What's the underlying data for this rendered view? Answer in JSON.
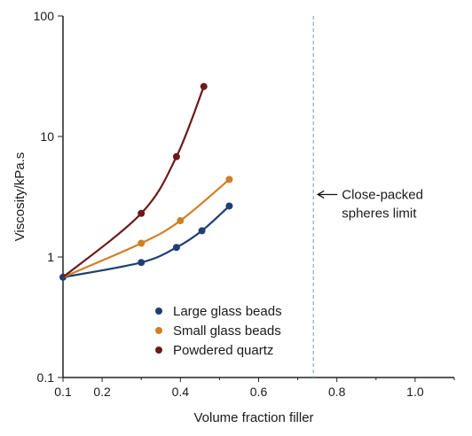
{
  "chart_data": {
    "type": "line",
    "xlabel": "Volume fraction filler",
    "ylabel": "Viscosity/kPa.s",
    "xscale": "linear",
    "yscale": "log",
    "xlim": [
      0.1,
      1.1
    ],
    "ylim": [
      0.1,
      100
    ],
    "x_ticks": [
      0.1,
      0.2,
      0.4,
      0.6,
      0.8,
      1.0
    ],
    "x_tick_labels": [
      "0.1",
      "0.2",
      "0.4",
      "0.6",
      "0.8",
      "1.0"
    ],
    "y_ticks": [
      0.1,
      1,
      10,
      100
    ],
    "y_tick_labels": [
      "0.1",
      "1",
      "10",
      "100"
    ],
    "grid": false,
    "legend_position": "bottom-left",
    "series": [
      {
        "name": "Large glass beads",
        "color": "#1f3f74",
        "x": [
          0.1,
          0.3,
          0.39,
          0.455,
          0.525
        ],
        "y": [
          0.68,
          0.9,
          1.2,
          1.65,
          2.65
        ]
      },
      {
        "name": "Small glass beads",
        "color": "#d07f28",
        "x": [
          0.1,
          0.3,
          0.4,
          0.525
        ],
        "y": [
          0.68,
          1.3,
          2.0,
          4.4
        ]
      },
      {
        "name": "Powdered quartz",
        "color": "#6b1a1a",
        "x": [
          0.1,
          0.3,
          0.39,
          0.46
        ],
        "y": [
          0.68,
          2.3,
          6.8,
          26
        ]
      }
    ],
    "reference_line": {
      "x": 0.74,
      "color": "#8fb3c9",
      "style": "dashed",
      "label_lines": [
        "Close-packed",
        "spheres limit"
      ]
    }
  }
}
